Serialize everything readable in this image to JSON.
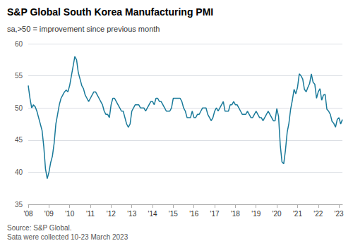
{
  "chart_data": {
    "type": "line",
    "title": "S&P Global South Korea Manufacturing PMI",
    "subtitle": "sa,>50 = improvement since previous month",
    "source": "Source: S&P Global.\nSata were collected 10-23 March 2023",
    "color": "#1a7a9a",
    "categories": [
      "'08",
      null,
      null,
      null,
      null,
      null,
      null,
      null,
      null,
      null,
      null,
      null,
      "'09",
      null,
      null,
      null,
      null,
      null,
      null,
      null,
      null,
      null,
      null,
      null,
      "'10",
      null,
      null,
      null,
      null,
      null,
      null,
      null,
      null,
      null,
      null,
      null,
      "'11",
      null,
      null,
      null,
      null,
      null,
      null,
      null,
      null,
      null,
      null,
      null,
      "'12",
      null,
      null,
      null,
      null,
      null,
      null,
      null,
      null,
      null,
      null,
      null,
      "'13",
      null,
      null,
      null,
      null,
      null,
      null,
      null,
      null,
      null,
      null,
      null,
      "'14",
      null,
      null,
      null,
      null,
      null,
      null,
      null,
      null,
      null,
      null,
      null,
      "'15",
      null,
      null,
      null,
      null,
      null,
      null,
      null,
      null,
      null,
      null,
      null,
      "'16",
      null,
      null,
      null,
      null,
      null,
      null,
      null,
      null,
      null,
      null,
      null,
      "'17",
      null,
      null,
      null,
      null,
      null,
      null,
      null,
      null,
      null,
      null,
      null,
      "'18",
      null,
      null,
      null,
      null,
      null,
      null,
      null,
      null,
      null,
      null,
      null,
      "'19",
      null,
      null,
      null,
      null,
      null,
      null,
      null,
      null,
      null,
      null,
      null,
      "'20",
      null,
      null,
      null,
      null,
      null,
      null,
      null,
      null,
      null,
      null,
      null,
      "'21",
      null,
      null,
      null,
      null,
      null,
      null,
      null,
      null,
      null,
      null,
      null,
      "'22",
      null,
      null,
      null,
      null,
      null,
      null,
      null,
      null,
      null,
      null,
      null,
      "'23",
      null,
      null
    ],
    "values": [
      53.5,
      51.5,
      50.0,
      50.5,
      50.2,
      49.5,
      48.5,
      47.5,
      46.5,
      44.0,
      40.5,
      39.0,
      40.0,
      41.5,
      42.5,
      44.5,
      47.5,
      49.0,
      50.5,
      51.5,
      52.0,
      52.5,
      52.8,
      52.5,
      53.5,
      55.0,
      56.5,
      58.0,
      57.5,
      55.5,
      54.5,
      53.5,
      53.0,
      52.0,
      51.5,
      51.0,
      51.5,
      52.0,
      52.5,
      52.5,
      52.0,
      51.5,
      51.0,
      50.5,
      49.5,
      49.0,
      49.0,
      48.5,
      50.5,
      51.5,
      51.5,
      51.0,
      50.5,
      50.0,
      49.5,
      49.5,
      48.5,
      47.5,
      47.0,
      47.5,
      49.5,
      50.0,
      50.5,
      50.5,
      50.5,
      50.0,
      50.0,
      50.0,
      49.5,
      50.0,
      50.5,
      51.0,
      51.0,
      50.5,
      51.5,
      51.5,
      51.0,
      51.0,
      50.5,
      50.0,
      49.5,
      49.5,
      49.5,
      50.0,
      51.5,
      51.5,
      51.5,
      51.5,
      51.5,
      51.0,
      50.0,
      49.5,
      48.5,
      48.5,
      48.5,
      49.5,
      48.5,
      48.5,
      49.0,
      49.0,
      49.5,
      50.0,
      50.0,
      50.0,
      49.0,
      48.5,
      48.0,
      48.5,
      49.5,
      50.0,
      49.5,
      50.0,
      50.5,
      51.0,
      49.5,
      49.5,
      49.5,
      50.5,
      50.5,
      51.0,
      50.5,
      50.5,
      50.0,
      49.5,
      49.0,
      49.0,
      49.0,
      49.5,
      49.0,
      48.5,
      48.5,
      49.0,
      49.5,
      49.0,
      48.5,
      48.5,
      48.0,
      48.5,
      49.0,
      49.5,
      49.0,
      48.5,
      48.0,
      48.0,
      49.9,
      48.7,
      44.2,
      41.6,
      41.3,
      43.4,
      46.2,
      47.6,
      49.8,
      51.2,
      52.9,
      52.2,
      53.2,
      55.3,
      55.0,
      54.5,
      52.9,
      52.5,
      53.2,
      53.8,
      55.3,
      54.0,
      53.7,
      51.5,
      52.5,
      53.0,
      51.2,
      52.0,
      52.1,
      49.8,
      49.5,
      49.0,
      47.9,
      47.6,
      47.0,
      48.2,
      48.5,
      47.5,
      48.2
    ],
    "ylim": [
      35,
      60
    ],
    "yticks": [
      35,
      40,
      45,
      50,
      55,
      60
    ],
    "grid": true
  }
}
